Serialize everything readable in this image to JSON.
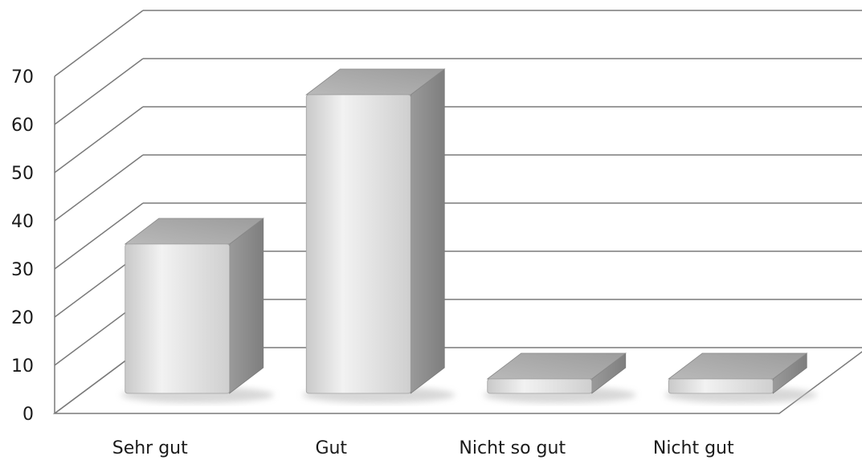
{
  "chart_data": {
    "type": "bar",
    "style": "3d-column",
    "categories": [
      "Sehr gut",
      "Gut",
      "Nicht so gut",
      "Nicht gut"
    ],
    "values": [
      31,
      62,
      3,
      3
    ],
    "ylim": [
      0,
      70
    ],
    "yticks": [
      0,
      10,
      20,
      30,
      40,
      50,
      60,
      70
    ],
    "grid": true,
    "colors": {
      "bar_front": "#dcdcdc",
      "bar_side": "#8e8e8e",
      "bar_top": "#a8a8a8",
      "grid": "#7a7a7a"
    }
  }
}
